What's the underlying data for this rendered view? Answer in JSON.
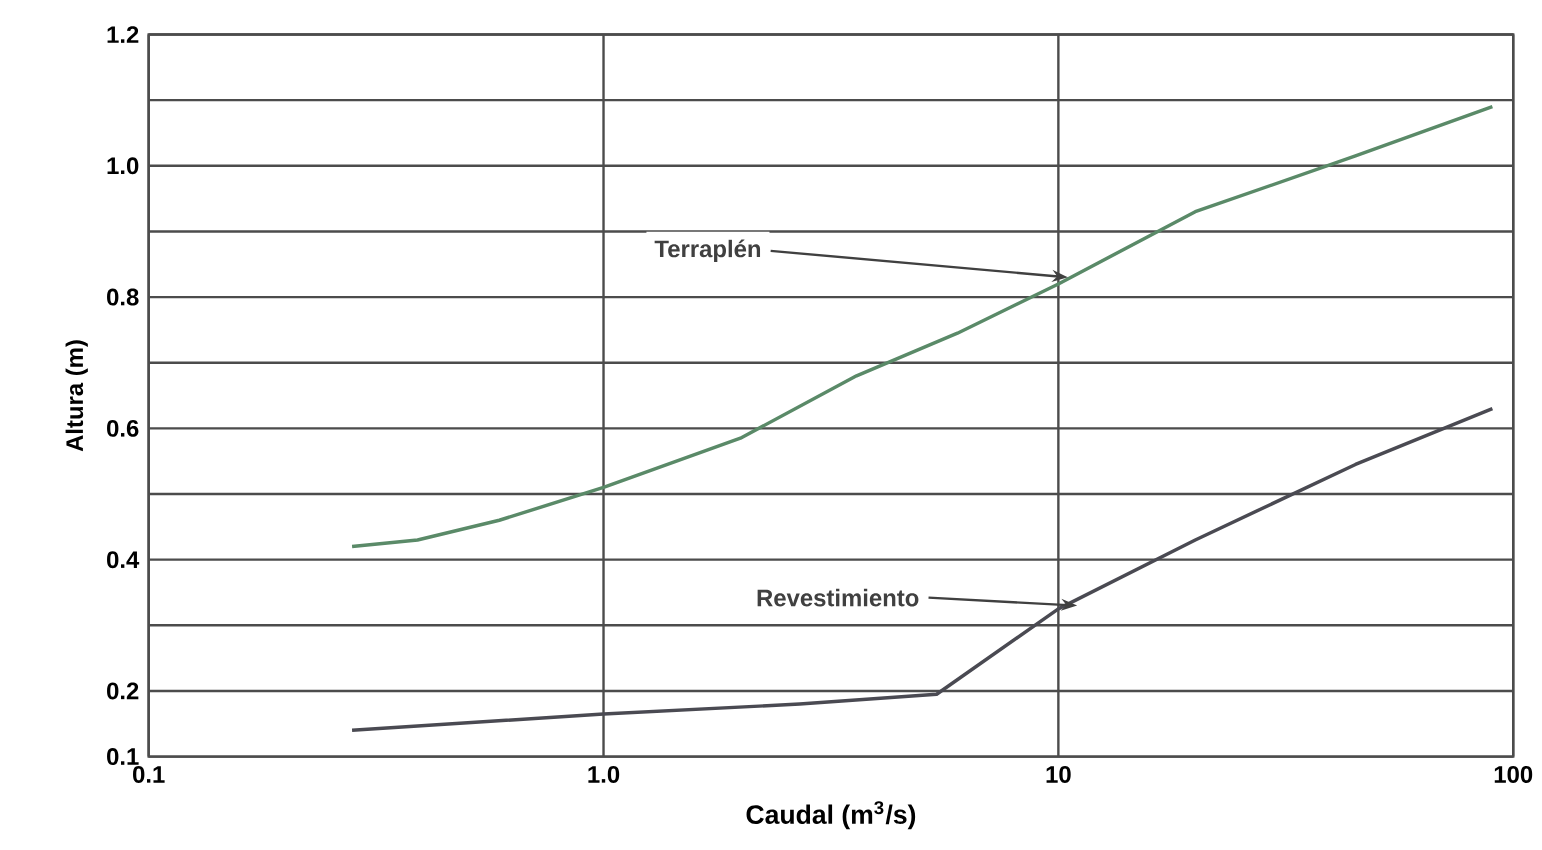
{
  "chart_data": {
    "type": "line",
    "xlabel": "Caudal (m$^{3}$/s)",
    "ylabel": "Altura (m)",
    "log": "x",
    "xlim": [
      0.1,
      100
    ],
    "ylim": [
      0.1,
      1.2
    ],
    "xticks": [
      0.1,
      {
        "value": 1,
        "label": "1.0"
      },
      10,
      100
    ],
    "yticks": [
      0.1,
      0.2,
      {
        "value": 0.3,
        "label": null
      },
      0.4,
      {
        "value": 0.5,
        "label": null
      },
      0.6,
      {
        "value": 0.7,
        "label": null
      },
      0.8,
      {
        "value": 0.9,
        "label": null
      },
      {
        "value": 1.0,
        "label": "1.0"
      },
      {
        "value": 1.1,
        "label": null
      },
      1.2
    ],
    "grid": true,
    "series": [
      {
        "color": "#5a8a68",
        "x": [
          0.28,
          0.39,
          0.59,
          1.0,
          2.0,
          3.6,
          6.0,
          10,
          20,
          45,
          90
        ],
        "values": [
          0.42,
          0.43,
          0.46,
          0.51,
          0.585,
          0.68,
          0.745,
          0.82,
          0.93,
          1.015,
          1.09
        ]
      },
      {
        "color": "#4a4a52",
        "x": [
          0.28,
          1.0,
          2.7,
          5.4,
          10,
          20,
          45,
          90
        ],
        "values": [
          0.14,
          0.165,
          0.18,
          0.195,
          0.325,
          0.43,
          0.545,
          0.63
        ]
      }
    ],
    "annotations": [
      {
        "text": "Terraplén",
        "x": 10.5,
        "y": 0.83
      },
      {
        "text": "Revestimiento",
        "x": 11,
        "y": 0.33
      }
    ]
  }
}
